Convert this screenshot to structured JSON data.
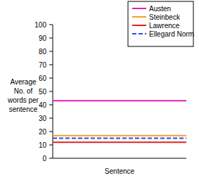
{
  "chart_data": {
    "type": "line",
    "xlabel": "Sentence",
    "ylabel": "Average No. of words per sentence",
    "categories": [
      null,
      null
    ],
    "series": [
      {
        "name": "Austen",
        "color": "#e020c0",
        "line_style": "solid",
        "values": [
          43,
          43
        ]
      },
      {
        "name": "Steinbeck",
        "color": "#f0a030",
        "line_style": "solid",
        "values": [
          17,
          17
        ]
      },
      {
        "name": "Lawrence",
        "color": "#e02020",
        "line_style": "solid",
        "values": [
          12,
          12
        ]
      },
      {
        "name": "Ellegard Norm",
        "color": "#2050e0",
        "line_style": "dashed",
        "values": [
          15,
          15
        ]
      }
    ],
    "ylim": [
      0,
      100
    ],
    "yticks": [
      0,
      10,
      20,
      30,
      40,
      50,
      60,
      70,
      80,
      90,
      100
    ],
    "grid": false,
    "legend": "upper right"
  }
}
